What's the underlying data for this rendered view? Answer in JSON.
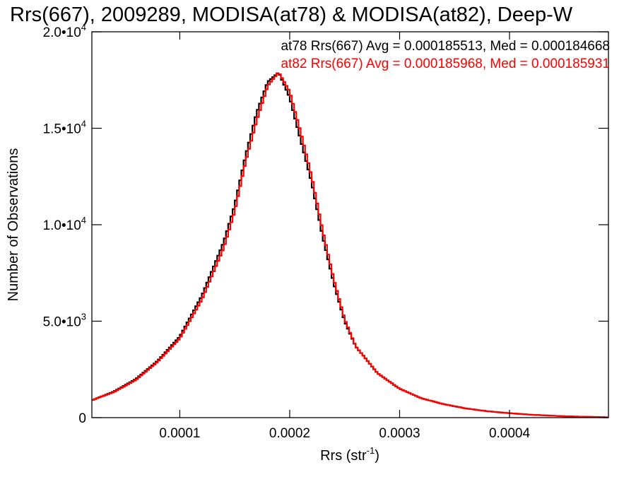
{
  "chart_data": {
    "type": "line",
    "title": "Rrs(667), 2009289, MODISA(at78) & MODISA(at82), Deep-W",
    "xlabel": "Rrs (str",
    "xlabel_sup": "-1",
    "xlabel_close": ")",
    "ylabel": "Number of Observations",
    "xlim": [
      2e-05,
      0.00049
    ],
    "ylim": [
      0,
      20000
    ],
    "x_ticks": [
      {
        "value": 0.0001,
        "label": "0.0001"
      },
      {
        "value": 0.0002,
        "label": "0.0002"
      },
      {
        "value": 0.0003,
        "label": "0.0003"
      },
      {
        "value": 0.0004,
        "label": "0.0004"
      }
    ],
    "y_ticks": [
      {
        "value": 0,
        "label": "0",
        "sup": ""
      },
      {
        "value": 5000,
        "label": "5.0•10",
        "sup": "3"
      },
      {
        "value": 10000,
        "label": "1.0•10",
        "sup": "4"
      },
      {
        "value": 15000,
        "label": "1.5•10",
        "sup": "4"
      },
      {
        "value": 20000,
        "label": "2.0•10",
        "sup": "4"
      }
    ],
    "grid": false,
    "legend_position": "top-right",
    "series": [
      {
        "id": "at78",
        "color": "#000000",
        "legend": "at78 Rrs(667) Avg = 0.000185513, Med = 0.000184668",
        "x": [
          2e-05,
          4e-05,
          6e-05,
          8e-05,
          0.0001,
          0.00012,
          0.00014,
          0.00015,
          0.00016,
          0.00017,
          0.00018,
          0.00019,
          0.0002,
          0.00021,
          0.00022,
          0.00023,
          0.00024,
          0.00025,
          0.00026,
          0.00028,
          0.0003,
          0.00032,
          0.00034,
          0.00036,
          0.00038,
          0.0004,
          0.00042,
          0.00045,
          0.00049
        ],
        "y": [
          900,
          1350,
          2000,
          2950,
          4200,
          6300,
          9100,
          11000,
          13600,
          15800,
          17400,
          17900,
          16600,
          14400,
          12200,
          9400,
          7000,
          5000,
          3700,
          2300,
          1500,
          1000,
          700,
          480,
          330,
          230,
          150,
          70,
          15
        ]
      },
      {
        "id": "at82",
        "color": "#ff0000",
        "legend": "at82 Rrs(667) Avg = 0.000185968, Med = 0.000185931",
        "x": [
          2e-05,
          4e-05,
          6e-05,
          8e-05,
          0.0001,
          0.00012,
          0.00014,
          0.00015,
          0.00016,
          0.00017,
          0.00018,
          0.00019,
          0.0002,
          0.00021,
          0.00022,
          0.00023,
          0.00024,
          0.00025,
          0.00026,
          0.00028,
          0.0003,
          0.00032,
          0.00034,
          0.00036,
          0.00038,
          0.0004,
          0.00042,
          0.00045,
          0.00049
        ],
        "y": [
          900,
          1320,
          1950,
          2900,
          4100,
          6100,
          8800,
          10700,
          13300,
          15400,
          17200,
          17900,
          16900,
          14800,
          12500,
          9700,
          7200,
          5100,
          3700,
          2300,
          1500,
          1000,
          700,
          480,
          330,
          230,
          150,
          70,
          15
        ]
      }
    ]
  }
}
